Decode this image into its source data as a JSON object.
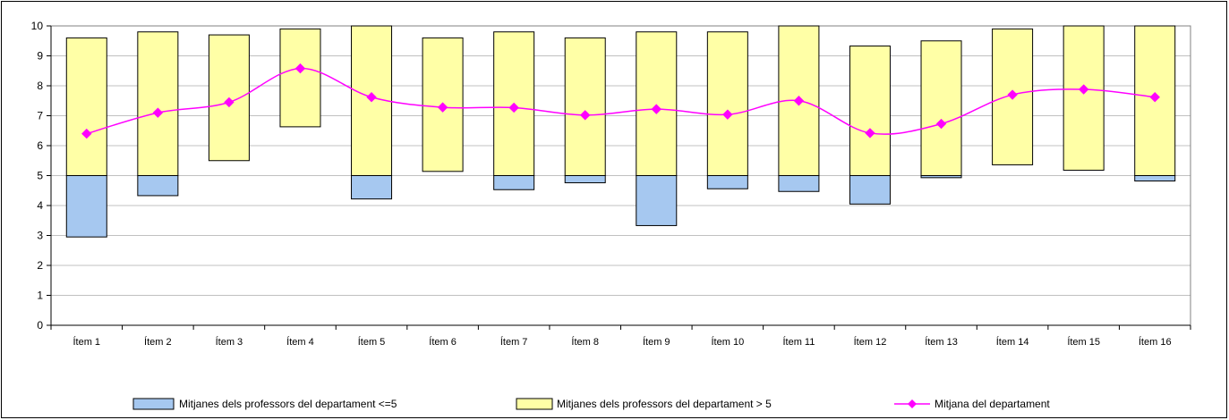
{
  "chart_data": {
    "type": "bar",
    "categories": [
      "Ítem 1",
      "Ítem 2",
      "Ítem 3",
      "Ítem 4",
      "Ítem 5",
      "Ítem 6",
      "Ítem 7",
      "Ítem 8",
      "Ítem 9",
      "Ítem 10",
      "Ítem 11",
      "Ítem 12",
      "Ítem 13",
      "Ítem 14",
      "Ítem 15",
      "Ítem 16"
    ],
    "series": [
      {
        "name": "Mitjanes dels professors del departament <=5",
        "kind": "floating-bar",
        "color": "#a6c8f0",
        "low": [
          2.95,
          4.33,
          null,
          null,
          4.22,
          null,
          4.53,
          4.76,
          3.33,
          4.56,
          4.47,
          4.05,
          4.93,
          null,
          null,
          4.82
        ],
        "high": [
          5,
          5,
          null,
          null,
          5,
          null,
          5,
          5,
          5,
          5,
          5,
          5,
          5,
          null,
          null,
          5
        ]
      },
      {
        "name": "Mitjanes dels professors del departament > 5",
        "kind": "floating-bar",
        "color": "#ffffa6",
        "low": [
          5,
          5,
          5.5,
          6.63,
          5,
          5.14,
          5,
          5,
          5,
          5,
          5,
          5,
          5,
          5.36,
          5.18,
          5
        ],
        "high": [
          9.6,
          9.8,
          9.7,
          9.9,
          10,
          9.6,
          9.8,
          9.6,
          9.8,
          9.8,
          10,
          9.33,
          9.5,
          9.9,
          10,
          10
        ]
      },
      {
        "name": "Mitjana del departament",
        "kind": "line",
        "color": "#ff00ff",
        "values": [
          6.4,
          7.1,
          7.45,
          8.58,
          7.62,
          7.28,
          7.27,
          7.02,
          7.22,
          7.04,
          7.5,
          6.42,
          6.73,
          7.7,
          7.88,
          7.62
        ]
      }
    ],
    "ylim": [
      0,
      10
    ],
    "yticks": [
      "0",
      "1",
      "2",
      "3",
      "4",
      "5",
      "6",
      "7",
      "8",
      "9",
      "10"
    ],
    "grid": true,
    "legend_position": "bottom"
  }
}
